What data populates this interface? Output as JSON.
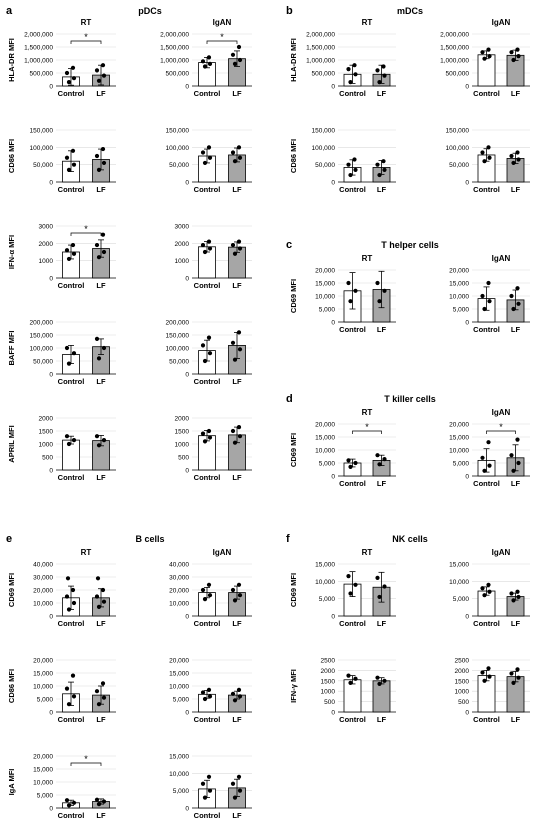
{
  "sections": [
    {
      "letter": "a",
      "title": "pDCs"
    },
    {
      "letter": "b",
      "title": "mDCs"
    },
    {
      "letter": "c",
      "title": "T helper cells"
    },
    {
      "letter": "d",
      "title": "T killer  cells"
    },
    {
      "letter": "e",
      "title": "B cells"
    },
    {
      "letter": "f",
      "title": "NK cells"
    }
  ],
  "colors": {
    "control": "#ffffff",
    "lf": "#a6a6a6",
    "edge": "#000000",
    "grid": "#d9d9d9"
  },
  "chart_data": [
    {
      "type": "bar",
      "section": "a",
      "panel_title": "RT",
      "ylabel": "HLA-DR MFI",
      "categories": [
        "Control",
        "LF"
      ],
      "ylim": [
        0,
        2000000
      ],
      "yticks": [
        "0",
        "500,000",
        "1,000,000",
        "1,500,000",
        "2,000,000"
      ],
      "values": [
        350000,
        420000
      ],
      "errors": [
        320000,
        380000
      ],
      "points": [
        [
          150000,
          300000,
          500000,
          700000
        ],
        [
          200000,
          400000,
          600000,
          800000
        ]
      ],
      "significance": "*"
    },
    {
      "type": "bar",
      "section": "a",
      "panel_title": "IgAN",
      "ylabel": "",
      "categories": [
        "Control",
        "LF"
      ],
      "ylim": [
        0,
        2000000
      ],
      "yticks": [
        "0",
        "500,000",
        "1,000,000",
        "1,500,000",
        "2,000,000"
      ],
      "values": [
        900000,
        1050000
      ],
      "errors": [
        200000,
        300000
      ],
      "points": [
        [
          750000,
          850000,
          950000,
          1100000
        ],
        [
          850000,
          1000000,
          1200000,
          1500000
        ]
      ],
      "significance": "*"
    },
    {
      "type": "bar",
      "section": "a",
      "panel_title": "",
      "ylabel": "CD86 MFI",
      "categories": [
        "Control",
        "LF"
      ],
      "ylim": [
        0,
        150000
      ],
      "yticks": [
        "0",
        "50,000",
        "100,000",
        "150,000"
      ],
      "values": [
        60000,
        65000
      ],
      "errors": [
        30000,
        30000
      ],
      "points": [
        [
          35000,
          50000,
          70000,
          90000
        ],
        [
          35000,
          55000,
          75000,
          95000
        ]
      ],
      "significance": ""
    },
    {
      "type": "bar",
      "section": "a",
      "panel_title": "",
      "ylabel": "",
      "categories": [
        "Control",
        "LF"
      ],
      "ylim": [
        0,
        150000
      ],
      "yticks": [
        "0",
        "50,000",
        "100,000",
        "150,000"
      ],
      "values": [
        75000,
        78000
      ],
      "errors": [
        20000,
        20000
      ],
      "points": [
        [
          55000,
          70000,
          85000,
          100000
        ],
        [
          60000,
          70000,
          85000,
          100000
        ]
      ],
      "significance": ""
    },
    {
      "type": "bar",
      "section": "a",
      "panel_title": "",
      "ylabel": "IFN-α MFI",
      "categories": [
        "Control",
        "LF"
      ],
      "ylim": [
        0,
        3000
      ],
      "yticks": [
        "0",
        "1000",
        "2000",
        "3000"
      ],
      "values": [
        1500,
        1700
      ],
      "errors": [
        400,
        500
      ],
      "points": [
        [
          1100,
          1400,
          1600,
          1900
        ],
        [
          1200,
          1500,
          1900,
          2500
        ]
      ],
      "significance": "*"
    },
    {
      "type": "bar",
      "section": "a",
      "panel_title": "",
      "ylabel": "",
      "categories": [
        "Control",
        "LF"
      ],
      "ylim": [
        0,
        3000
      ],
      "yticks": [
        "0",
        "1000",
        "2000",
        "3000"
      ],
      "values": [
        1800,
        1780
      ],
      "errors": [
        300,
        300
      ],
      "points": [
        [
          1500,
          1700,
          1900,
          2100
        ],
        [
          1400,
          1700,
          1900,
          2100
        ]
      ],
      "significance": ""
    },
    {
      "type": "bar",
      "section": "a",
      "panel_title": "",
      "ylabel": "BAFF MFI",
      "categories": [
        "Control",
        "LF"
      ],
      "ylim": [
        0,
        200000
      ],
      "yticks": [
        "0",
        "50,000",
        "100,000",
        "150,000",
        "200,000"
      ],
      "values": [
        75000,
        105000
      ],
      "errors": [
        35000,
        30000
      ],
      "points": [
        [
          40000,
          80000,
          100000
        ],
        [
          60000,
          100000,
          135000
        ]
      ],
      "significance": ""
    },
    {
      "type": "bar",
      "section": "a",
      "panel_title": "",
      "ylabel": "",
      "categories": [
        "Control",
        "LF"
      ],
      "ylim": [
        0,
        200000
      ],
      "yticks": [
        "0",
        "50,000",
        "100,000",
        "150,000",
        "200,000"
      ],
      "values": [
        90000,
        110000
      ],
      "errors": [
        40000,
        50000
      ],
      "points": [
        [
          50000,
          80000,
          110000,
          140000
        ],
        [
          55000,
          95000,
          120000,
          160000
        ]
      ],
      "significance": ""
    },
    {
      "type": "bar",
      "section": "a",
      "panel_title": "",
      "ylabel": "APRIL MFI",
      "categories": [
        "Control",
        "LF"
      ],
      "ylim": [
        0,
        2000
      ],
      "yticks": [
        "0",
        "500",
        "1000",
        "1500",
        "2000"
      ],
      "values": [
        1150,
        1130
      ],
      "errors": [
        150,
        200
      ],
      "points": [
        [
          1000,
          1150,
          1300
        ],
        [
          950,
          1150,
          1300
        ]
      ],
      "significance": ""
    },
    {
      "type": "bar",
      "section": "a",
      "panel_title": "",
      "ylabel": "",
      "categories": [
        "Control",
        "LF"
      ],
      "ylim": [
        0,
        2000
      ],
      "yticks": [
        "0",
        "500",
        "1000",
        "1500",
        "2000"
      ],
      "values": [
        1320,
        1350
      ],
      "errors": [
        200,
        300
      ],
      "points": [
        [
          1100,
          1250,
          1400,
          1500
        ],
        [
          1050,
          1300,
          1500,
          1650
        ]
      ],
      "significance": ""
    },
    {
      "type": "bar",
      "section": "b",
      "panel_title": "RT",
      "ylabel": "HLA-DR MFI",
      "categories": [
        "Control",
        "LF"
      ],
      "ylim": [
        0,
        2000000
      ],
      "yticks": [
        "0",
        "500,000",
        "1,000,000",
        "1,500,000",
        "2,000,000"
      ],
      "values": [
        450000,
        450000
      ],
      "errors": [
        350000,
        350000
      ],
      "points": [
        [
          150000,
          450000,
          650000,
          800000
        ],
        [
          150000,
          400000,
          600000,
          750000
        ]
      ],
      "significance": ""
    },
    {
      "type": "bar",
      "section": "b",
      "panel_title": "IgAN",
      "ylabel": "",
      "categories": [
        "Control",
        "LF"
      ],
      "ylim": [
        0,
        2000000
      ],
      "yticks": [
        "0",
        "500,000",
        "1,000,000",
        "1,500,000",
        "2,000,000"
      ],
      "values": [
        1200000,
        1180000
      ],
      "errors": [
        150000,
        200000
      ],
      "points": [
        [
          1050000,
          1150000,
          1300000,
          1400000
        ],
        [
          1000000,
          1150000,
          1300000,
          1400000
        ]
      ],
      "significance": ""
    },
    {
      "type": "bar",
      "section": "b",
      "panel_title": "",
      "ylabel": "CD86 MFI",
      "categories": [
        "Control",
        "LF"
      ],
      "ylim": [
        0,
        150000
      ],
      "yticks": [
        "0",
        "50,000",
        "100,000",
        "150,000"
      ],
      "values": [
        42000,
        42000
      ],
      "errors": [
        22000,
        20000
      ],
      "points": [
        [
          20000,
          35000,
          50000,
          65000
        ],
        [
          20000,
          35000,
          50000,
          60000
        ]
      ],
      "significance": ""
    },
    {
      "type": "bar",
      "section": "b",
      "panel_title": "",
      "ylabel": "",
      "categories": [
        "Control",
        "LF"
      ],
      "ylim": [
        0,
        150000
      ],
      "yticks": [
        "0",
        "50,000",
        "100,000",
        "150,000"
      ],
      "values": [
        78000,
        68000
      ],
      "errors": [
        18000,
        15000
      ],
      "points": [
        [
          60000,
          70000,
          85000,
          100000
        ],
        [
          55000,
          65000,
          75000,
          85000
        ]
      ],
      "significance": ""
    },
    {
      "type": "bar",
      "section": "c",
      "panel_title": "RT",
      "ylabel": "CD69 MFI",
      "categories": [
        "Control",
        "LF"
      ],
      "ylim": [
        0,
        20000
      ],
      "yticks": [
        "0",
        "5,000",
        "10,000",
        "15,000",
        "20,000"
      ],
      "values": [
        12000,
        12500
      ],
      "errors": [
        7000,
        7000
      ],
      "points": [
        [
          8000,
          12000,
          15000
        ],
        [
          8000,
          12000,
          15000
        ]
      ],
      "significance": ""
    },
    {
      "type": "bar",
      "section": "c",
      "panel_title": "IgAN",
      "ylabel": "",
      "categories": [
        "Control",
        "LF"
      ],
      "ylim": [
        0,
        20000
      ],
      "yticks": [
        "0",
        "5,000",
        "10,000",
        "15,000",
        "20,000"
      ],
      "values": [
        9000,
        8500
      ],
      "errors": [
        4500,
        3800
      ],
      "points": [
        [
          5000,
          8000,
          10000,
          15000
        ],
        [
          5000,
          7000,
          10000,
          13000
        ]
      ],
      "significance": ""
    },
    {
      "type": "bar",
      "section": "d",
      "panel_title": "RT",
      "ylabel": "CD69 MFI",
      "categories": [
        "Control",
        "LF"
      ],
      "ylim": [
        0,
        20000
      ],
      "yticks": [
        "0",
        "5,000",
        "10,000",
        "15,000",
        "20,000"
      ],
      "values": [
        5000,
        6000
      ],
      "errors": [
        1500,
        2000
      ],
      "points": [
        [
          3500,
          5000,
          6000
        ],
        [
          4500,
          6500,
          8000
        ]
      ],
      "significance": "*"
    },
    {
      "type": "bar",
      "section": "d",
      "panel_title": "IgAN",
      "ylabel": "",
      "categories": [
        "Control",
        "LF"
      ],
      "ylim": [
        0,
        20000
      ],
      "yticks": [
        "0",
        "5,000",
        "10,000",
        "15,000",
        "20,000"
      ],
      "values": [
        6000,
        7000
      ],
      "errors": [
        4500,
        5000
      ],
      "points": [
        [
          2000,
          4000,
          7000,
          13000
        ],
        [
          2000,
          5000,
          8000,
          14000
        ]
      ],
      "significance": "*"
    },
    {
      "type": "bar",
      "section": "e",
      "panel_title": "RT",
      "ylabel": "CD69 MFI",
      "categories": [
        "Control",
        "LF"
      ],
      "ylim": [
        0,
        40000
      ],
      "yticks": [
        "0",
        "10,000",
        "20,000",
        "30,000",
        "40,000"
      ],
      "values": [
        14000,
        14000
      ],
      "errors": [
        9000,
        7000
      ],
      "points": [
        [
          5000,
          10000,
          15000,
          20000,
          29000
        ],
        [
          7000,
          11000,
          15000,
          20000,
          29000
        ]
      ],
      "significance": ""
    },
    {
      "type": "bar",
      "section": "e",
      "panel_title": "IgAN",
      "ylabel": "",
      "categories": [
        "Control",
        "LF"
      ],
      "ylim": [
        0,
        40000
      ],
      "yticks": [
        "0",
        "10,000",
        "20,000",
        "30,000",
        "40,000"
      ],
      "values": [
        18000,
        18000
      ],
      "errors": [
        4000,
        5000
      ],
      "points": [
        [
          13000,
          16000,
          20000,
          24000
        ],
        [
          12000,
          16000,
          20000,
          24000
        ]
      ],
      "significance": ""
    },
    {
      "type": "bar",
      "section": "e",
      "panel_title": "",
      "ylabel": "CD86 MFI",
      "categories": [
        "Control",
        "LF"
      ],
      "ylim": [
        0,
        20000
      ],
      "yticks": [
        "0",
        "5,000",
        "10,000",
        "15,000",
        "20,000"
      ],
      "values": [
        7000,
        6500
      ],
      "errors": [
        4500,
        3500
      ],
      "points": [
        [
          3000,
          6000,
          9000,
          14000
        ],
        [
          3000,
          5500,
          8000,
          11000
        ]
      ],
      "significance": ""
    },
    {
      "type": "bar",
      "section": "e",
      "panel_title": "",
      "ylabel": "",
      "categories": [
        "Control",
        "LF"
      ],
      "ylim": [
        0,
        20000
      ],
      "yticks": [
        "0",
        "5,000",
        "10,000",
        "15,000",
        "20,000"
      ],
      "values": [
        6800,
        6500
      ],
      "errors": [
        1500,
        1500
      ],
      "points": [
        [
          5000,
          6000,
          7500,
          8500
        ],
        [
          4500,
          6000,
          7000,
          8500
        ]
      ],
      "significance": ""
    },
    {
      "type": "bar",
      "section": "e",
      "panel_title": "",
      "ylabel": "IgA MFI",
      "categories": [
        "Control",
        "LF"
      ],
      "ylim": [
        0,
        20000
      ],
      "yticks": [
        "0",
        "5,000",
        "10,000",
        "15,000",
        "20,000"
      ],
      "values": [
        2000,
        2500
      ],
      "errors": [
        1000,
        1000
      ],
      "points": [
        [
          1000,
          2000,
          3000
        ],
        [
          1500,
          2500,
          3200
        ]
      ],
      "significance": "*"
    },
    {
      "type": "bar",
      "section": "e",
      "panel_title": "",
      "ylabel": "",
      "categories": [
        "Control",
        "LF"
      ],
      "ylim": [
        0,
        15000
      ],
      "yticks": [
        "0",
        "5,000",
        "10,000",
        "15,000"
      ],
      "values": [
        5500,
        5800
      ],
      "errors": [
        2500,
        2500
      ],
      "points": [
        [
          3000,
          5000,
          7000,
          9000
        ],
        [
          3000,
          5000,
          7000,
          9000
        ]
      ],
      "significance": ""
    },
    {
      "type": "bar",
      "section": "f",
      "panel_title": "RT",
      "ylabel": "CD69 MFI",
      "categories": [
        "Control",
        "LF"
      ],
      "ylim": [
        0,
        15000
      ],
      "yticks": [
        "0",
        "5,000",
        "10,000",
        "15,000"
      ],
      "values": [
        9200,
        8300
      ],
      "errors": [
        3600,
        4300
      ],
      "points": [
        [
          6500,
          9000,
          11500
        ],
        [
          5500,
          8500,
          11000
        ]
      ],
      "significance": ""
    },
    {
      "type": "bar",
      "section": "f",
      "panel_title": "IgAN",
      "ylabel": "",
      "categories": [
        "Control",
        "LF"
      ],
      "ylim": [
        0,
        15000
      ],
      "yticks": [
        "0",
        "5,000",
        "10,000",
        "15,000"
      ],
      "values": [
        7200,
        5600
      ],
      "errors": [
        1200,
        1000
      ],
      "points": [
        [
          6000,
          7000,
          8000,
          9000
        ],
        [
          4500,
          5500,
          6500,
          7000
        ]
      ],
      "significance": ""
    },
    {
      "type": "bar",
      "section": "f",
      "panel_title": "",
      "ylabel": "IFN-γ MFI",
      "categories": [
        "Control",
        "LF"
      ],
      "ylim": [
        0,
        2500
      ],
      "yticks": [
        "0",
        "500",
        "1000",
        "1500",
        "2000",
        "2500"
      ],
      "values": [
        1550,
        1500
      ],
      "errors": [
        200,
        150
      ],
      "points": [
        [
          1400,
          1600,
          1750
        ],
        [
          1350,
          1500,
          1650
        ]
      ],
      "significance": ""
    },
    {
      "type": "bar",
      "section": "f",
      "panel_title": "",
      "ylabel": "",
      "categories": [
        "Control",
        "LF"
      ],
      "ylim": [
        0,
        2500
      ],
      "yticks": [
        "0",
        "500",
        "1000",
        "1500",
        "2000",
        "2500"
      ],
      "values": [
        1750,
        1700
      ],
      "errors": [
        250,
        250
      ],
      "points": [
        [
          1500,
          1700,
          1900,
          2100
        ],
        [
          1400,
          1650,
          1850,
          2050
        ]
      ],
      "significance": ""
    }
  ]
}
